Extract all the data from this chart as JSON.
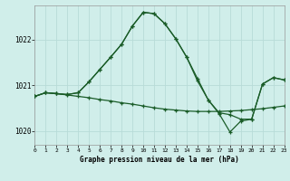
{
  "title": "Graphe pression niveau de la mer (hPa)",
  "bg_color": "#d0eeea",
  "grid_color": "#b8dbd8",
  "line_color": "#1a5c28",
  "yticks": [
    1020,
    1021,
    1022
  ],
  "xticks": [
    0,
    1,
    2,
    3,
    4,
    5,
    6,
    7,
    8,
    9,
    10,
    11,
    12,
    13,
    14,
    15,
    16,
    17,
    18,
    19,
    20,
    21,
    22,
    23
  ],
  "xlim": [
    0,
    23
  ],
  "ylim": [
    1019.7,
    1022.75
  ],
  "series_flat_x": [
    0,
    1,
    2,
    3,
    4,
    5,
    6,
    7,
    8,
    9,
    10,
    11,
    12,
    13,
    14,
    15,
    16,
    17,
    18,
    19,
    20,
    21,
    22,
    23
  ],
  "series_flat_y": [
    1020.76,
    1020.84,
    1020.82,
    1020.79,
    1020.76,
    1020.73,
    1020.69,
    1020.66,
    1020.62,
    1020.59,
    1020.55,
    1020.51,
    1020.48,
    1020.46,
    1020.44,
    1020.43,
    1020.43,
    1020.43,
    1020.44,
    1020.45,
    1020.47,
    1020.49,
    1020.52,
    1020.55
  ],
  "series_peak_x": [
    0,
    1,
    2,
    3,
    4,
    5,
    6,
    7,
    8,
    9,
    10,
    11,
    12,
    13,
    14,
    15,
    16,
    17,
    18,
    19,
    20,
    21,
    22,
    23
  ],
  "series_peak_y": [
    1020.76,
    1020.84,
    1020.82,
    1020.8,
    1020.84,
    1021.08,
    1021.35,
    1021.62,
    1021.9,
    1022.3,
    1022.6,
    1022.57,
    1022.35,
    1022.02,
    1021.62,
    1021.1,
    1020.68,
    1020.38,
    1019.98,
    1020.22,
    1020.26,
    1021.03,
    1021.17,
    1021.12
  ],
  "series_peak2_x": [
    0,
    1,
    2,
    3,
    4,
    5,
    6,
    7,
    8,
    9,
    10,
    11,
    12,
    13,
    14,
    15,
    16,
    17,
    18,
    19,
    20,
    21,
    22,
    23
  ],
  "series_peak2_y": [
    1020.76,
    1020.84,
    1020.82,
    1020.8,
    1020.84,
    1021.08,
    1021.35,
    1021.62,
    1021.9,
    1022.3,
    1022.6,
    1022.57,
    1022.35,
    1022.02,
    1021.62,
    1021.15,
    1020.68,
    1020.4,
    1020.36,
    1020.26,
    1020.26,
    1021.03,
    1021.17,
    1021.12
  ]
}
